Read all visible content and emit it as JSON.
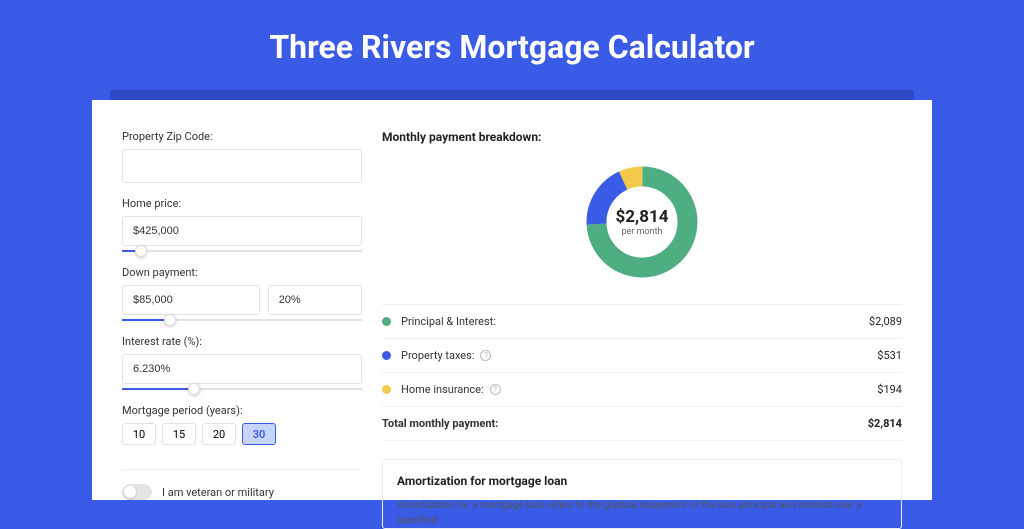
{
  "page": {
    "title": "Three Rivers Mortgage Calculator",
    "background_color": "#3a5be6",
    "accent_color": "#3a5be6"
  },
  "form": {
    "zip_label": "Property Zip Code:",
    "zip_value": "",
    "home_price_label": "Home price:",
    "home_price_value": "$425,000",
    "home_price_slider_pct": 8,
    "down_payment_label": "Down payment:",
    "down_payment_value": "$85,000",
    "down_payment_pct_value": "20%",
    "down_payment_slider_pct": 20,
    "interest_label": "Interest rate (%):",
    "interest_value": "6.230%",
    "interest_slider_pct": 30,
    "period_label": "Mortgage period (years):",
    "periods": [
      "10",
      "15",
      "20",
      "30"
    ],
    "period_selected": "30",
    "veteran_label": "I am veteran or military"
  },
  "breakdown": {
    "title": "Monthly payment breakdown:",
    "donut": {
      "center_value": "$2,814",
      "center_sub": "per month",
      "slices": [
        {
          "label": "Principal & Interest:",
          "value": "$2,089",
          "color": "#4eae81",
          "pct": 74.2
        },
        {
          "label": "Property taxes:",
          "value": "$531",
          "color": "#3a5be6",
          "pct": 18.9,
          "help": true
        },
        {
          "label": "Home insurance:",
          "value": "$194",
          "color": "#f3c94c",
          "pct": 6.9,
          "help": true
        }
      ]
    },
    "total_label": "Total monthly payment:",
    "total_value": "$2,814"
  },
  "amortization": {
    "title": "Amortization for mortgage loan",
    "text": "Amortization for a mortgage loan refers to the gradual repayment of the loan principal and interest over a specified"
  }
}
